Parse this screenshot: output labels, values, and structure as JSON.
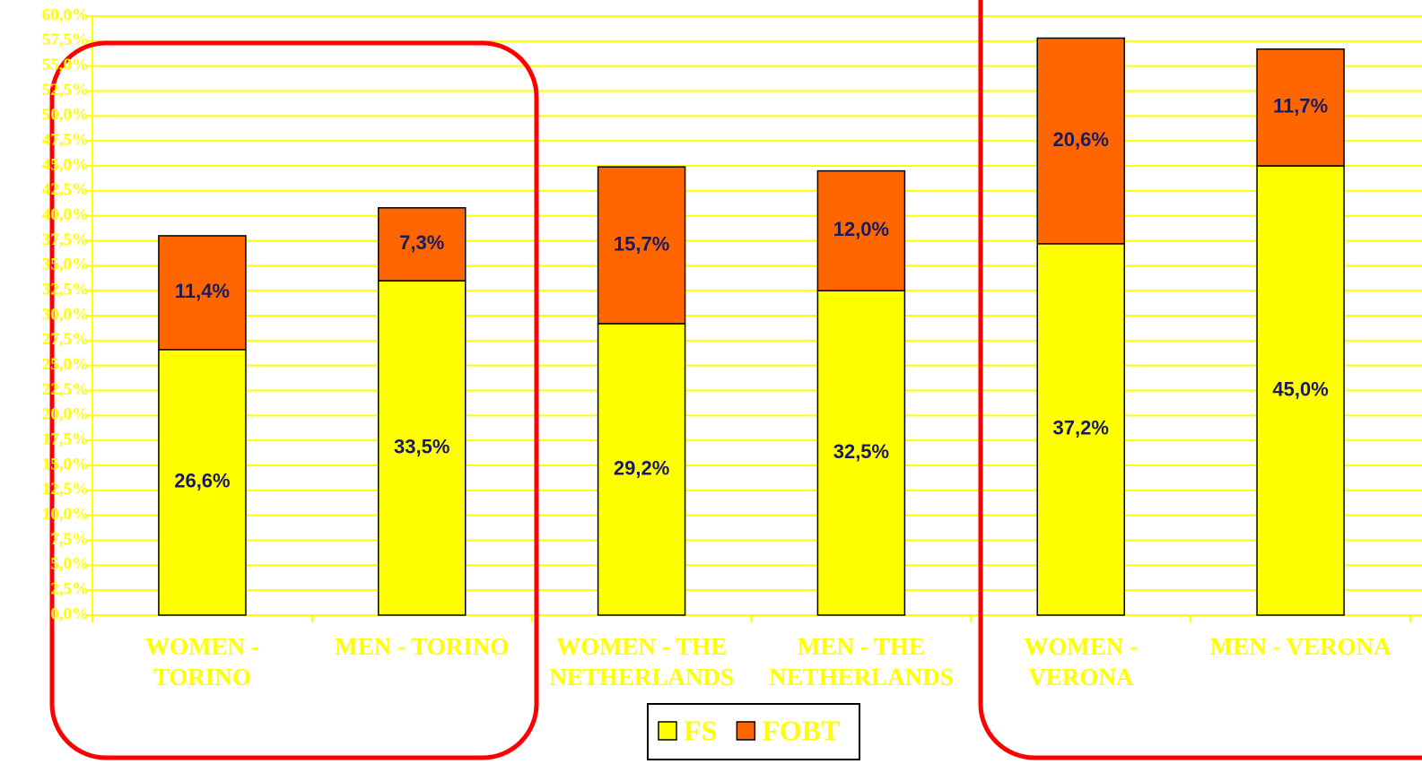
{
  "chart_data": {
    "type": "stacked_bar",
    "categories": [
      "WOMEN - TORINO",
      "MEN - TORINO",
      "WOMEN - THE NETHERLANDS",
      "MEN - THE NETHERLANDS",
      "WOMEN - VERONA",
      "MEN - VERONA"
    ],
    "series": [
      {
        "name": "FS",
        "color": "#ffff00",
        "values": [
          26.6,
          33.5,
          29.2,
          32.5,
          37.2,
          45.0
        ],
        "value_labels": [
          "26,6%",
          "33,5%",
          "29,2%",
          "32,5%",
          "37,2%",
          "45,0%"
        ]
      },
      {
        "name": "FOBT",
        "color": "#ff6600",
        "values": [
          11.4,
          7.3,
          15.7,
          12.0,
          20.6,
          11.7
        ],
        "value_labels": [
          "11,4%",
          "7,3%",
          "15,7%",
          "12,0%",
          "20,6%",
          "11,7%"
        ]
      }
    ],
    "ylim": [
      0,
      60
    ],
    "yticks": [
      {
        "value": 0,
        "label": "0,0%"
      },
      {
        "value": 2.5,
        "label": "2,5%"
      },
      {
        "value": 5,
        "label": "5,0%"
      },
      {
        "value": 7.5,
        "label": "7,5%"
      },
      {
        "value": 10,
        "label": "10,0%"
      },
      {
        "value": 12.5,
        "label": "12,5%"
      },
      {
        "value": 15,
        "label": "15,0%"
      },
      {
        "value": 17.5,
        "label": "17,5%"
      },
      {
        "value": 20,
        "label": "20,0%"
      },
      {
        "value": 22.5,
        "label": "22,5%"
      },
      {
        "value": 25,
        "label": "25,0%"
      },
      {
        "value": 27.5,
        "label": "27,5%"
      },
      {
        "value": 30,
        "label": "30,0%"
      },
      {
        "value": 32.5,
        "label": "32,5%"
      },
      {
        "value": 35,
        "label": "35,0%"
      },
      {
        "value": 37.5,
        "label": "37,5%"
      },
      {
        "value": 40,
        "label": "40,0%"
      },
      {
        "value": 42.5,
        "label": "42,5%"
      },
      {
        "value": 45,
        "label": "45,0%"
      },
      {
        "value": 47.5,
        "label": "47,5%"
      },
      {
        "value": 50,
        "label": "50,0%"
      },
      {
        "value": 52.5,
        "label": "52,5%"
      },
      {
        "value": 55,
        "label": "55,0%"
      },
      {
        "value": 57.5,
        "label": "57,5%"
      },
      {
        "value": 60,
        "label": "60,0%"
      }
    ],
    "grid": true,
    "legend": "bottom"
  }
}
